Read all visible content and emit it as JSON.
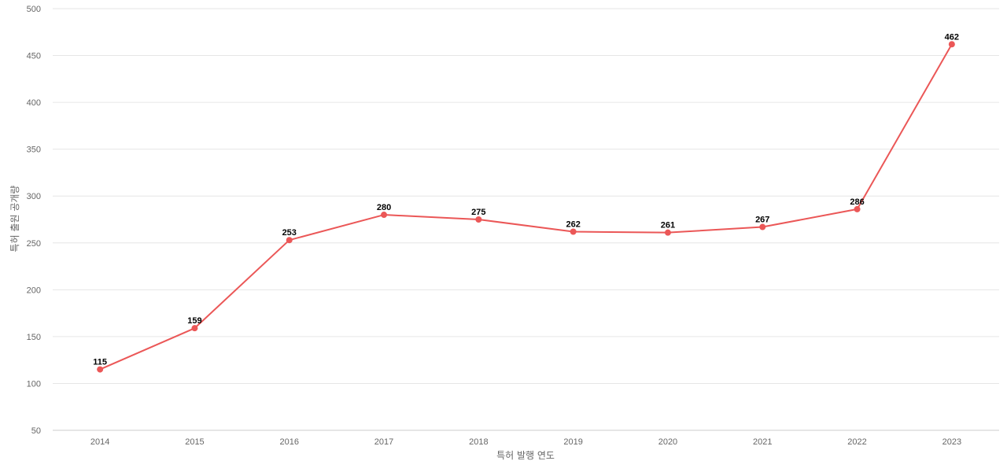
{
  "chart_data": {
    "type": "line",
    "title": "",
    "xlabel": "특허 발행 연도",
    "ylabel": "특허 출원 공개량",
    "categories": [
      "2014",
      "2015",
      "2016",
      "2017",
      "2018",
      "2019",
      "2020",
      "2021",
      "2022",
      "2023"
    ],
    "series": [
      {
        "values": [
          115,
          159,
          253,
          280,
          275,
          262,
          261,
          267,
          286,
          462
        ],
        "color": "#eb5757"
      }
    ],
    "ylim": [
      50,
      500
    ],
    "yticks": [
      50,
      100,
      150,
      200,
      250,
      300,
      350,
      400,
      450,
      500
    ],
    "grid": true,
    "legend": "none",
    "data_labels": true
  }
}
